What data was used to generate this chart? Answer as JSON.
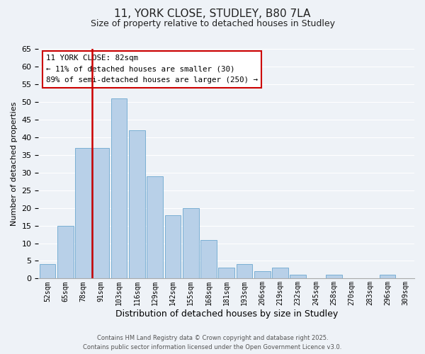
{
  "title_line1": "11, YORK CLOSE, STUDLEY, B80 7LA",
  "title_line2": "Size of property relative to detached houses in Studley",
  "xlabel": "Distribution of detached houses by size in Studley",
  "ylabel": "Number of detached properties",
  "bar_labels": [
    "52sqm",
    "65sqm",
    "78sqm",
    "91sqm",
    "103sqm",
    "116sqm",
    "129sqm",
    "142sqm",
    "155sqm",
    "168sqm",
    "181sqm",
    "193sqm",
    "206sqm",
    "219sqm",
    "232sqm",
    "245sqm",
    "258sqm",
    "270sqm",
    "283sqm",
    "296sqm",
    "309sqm"
  ],
  "bar_heights": [
    4,
    15,
    37,
    37,
    51,
    42,
    29,
    18,
    20,
    11,
    3,
    4,
    2,
    3,
    1,
    0,
    1,
    0,
    0,
    1,
    0
  ],
  "bar_color": "#b8d0e8",
  "bar_edge_color": "#7aafd4",
  "vline_color": "#cc0000",
  "vline_pos": 2.5,
  "ylim": [
    0,
    65
  ],
  "yticks": [
    0,
    5,
    10,
    15,
    20,
    25,
    30,
    35,
    40,
    45,
    50,
    55,
    60,
    65
  ],
  "annotation_title": "11 YORK CLOSE: 82sqm",
  "annotation_line1": "← 11% of detached houses are smaller (30)",
  "annotation_line2": "89% of semi-detached houses are larger (250) →",
  "annotation_box_color": "#ffffff",
  "annotation_box_edge": "#cc0000",
  "footer_line1": "Contains HM Land Registry data © Crown copyright and database right 2025.",
  "footer_line2": "Contains public sector information licensed under the Open Government Licence v3.0.",
  "background_color": "#eef2f7",
  "grid_color": "#ffffff"
}
